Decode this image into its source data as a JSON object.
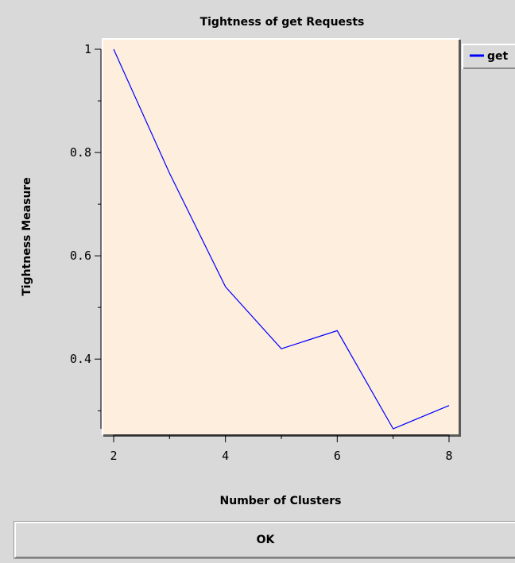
{
  "chart_data": {
    "type": "line",
    "title": "Tightness of get Requests",
    "xlabel": "Number of Clusters",
    "ylabel": "Tightness Measure",
    "x": [
      2,
      3,
      4,
      5,
      6,
      7,
      8
    ],
    "series": [
      {
        "name": "get",
        "color": "#0000ff",
        "values": [
          1.0,
          0.76,
          0.54,
          0.42,
          0.455,
          0.265,
          0.31
        ]
      }
    ],
    "xlim": [
      2,
      8
    ],
    "ylim": [
      0.265,
      1.0
    ],
    "x_major_ticks": [
      2,
      4,
      6,
      8
    ],
    "x_minor_ticks": [
      3,
      5,
      7
    ],
    "y_major_ticks": [
      1,
      0.8,
      0.6,
      0.4
    ],
    "y_major_tick_labels": [
      "1",
      "0.8",
      "0.6",
      "0.4"
    ],
    "y_minor_ticks": [
      0.9,
      0.7,
      0.5,
      0.3
    ],
    "grid": false,
    "legend_position": "top-right",
    "plot_background": "#fdeedd"
  },
  "ok_button": {
    "label": "OK"
  }
}
